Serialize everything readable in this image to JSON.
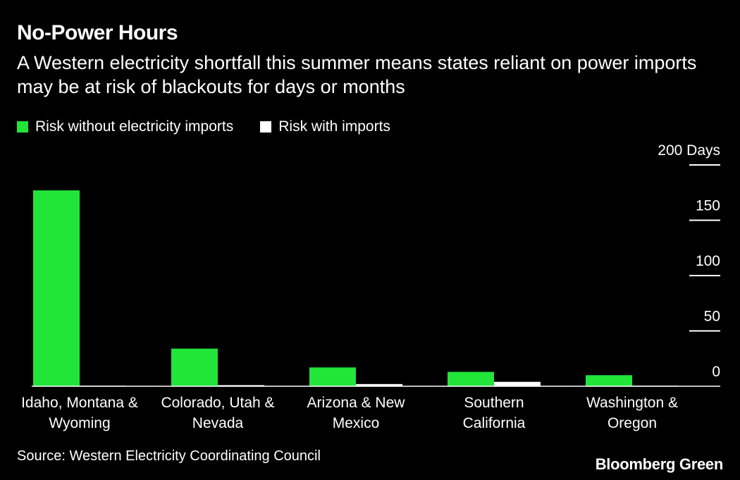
{
  "header": {
    "title": "No-Power Hours",
    "subtitle": "A Western electricity shortfall this summer means states reliant on power imports may be at risk of blackouts for days or months"
  },
  "legend": {
    "items": [
      {
        "label": "Risk without electricity imports",
        "color": "#22e53a"
      },
      {
        "label": "Risk with imports",
        "color": "#ffffff"
      }
    ]
  },
  "chart_data": {
    "type": "bar",
    "title": "No-Power Hours",
    "categories": [
      [
        "Idaho, Montana &",
        "Wyoming"
      ],
      [
        "Colorado, Utah &",
        "Nevada"
      ],
      [
        "Arizona & New",
        "Mexico"
      ],
      [
        "Southern",
        "California"
      ],
      [
        "Washington &",
        "Oregon"
      ]
    ],
    "series": [
      {
        "name": "Risk without electricity imports",
        "color": "#22e53a",
        "values": [
          177,
          34,
          17,
          13,
          10
        ]
      },
      {
        "name": "Risk with imports",
        "color": "#ffffff",
        "values": [
          0.5,
          1,
          2,
          4,
          0.5
        ]
      }
    ],
    "ylim": [
      0,
      200
    ],
    "yticks": [
      {
        "value": 200,
        "label": "200 Days"
      },
      {
        "value": 150,
        "label": "150"
      },
      {
        "value": 100,
        "label": "100"
      },
      {
        "value": 50,
        "label": "50"
      },
      {
        "value": 0,
        "label": "0"
      }
    ],
    "xlabel": "",
    "ylabel": "Days",
    "axis_position": "right",
    "grid": false
  },
  "footer": {
    "source": "Source: Western Electricity Coordinating Council",
    "brand": "Bloomberg Green"
  }
}
